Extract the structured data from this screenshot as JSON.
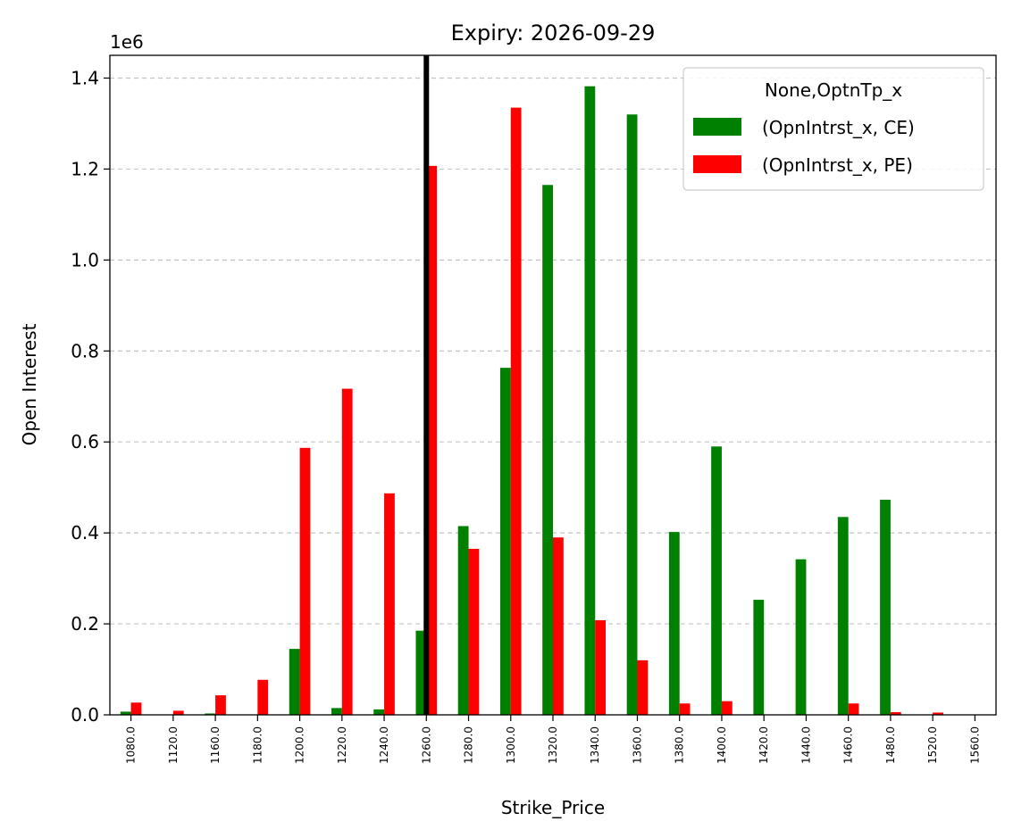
{
  "chart_data": {
    "type": "bar",
    "title": "Expiry: 2026-09-29",
    "xlabel": "Strike_Price",
    "ylabel": "Open Interest",
    "y_offset_label": "1e6",
    "ylim": [
      0,
      1.45
    ],
    "y_ticks": [
      "0.0",
      "0.2",
      "0.4",
      "0.6",
      "0.8",
      "1.0",
      "1.2",
      "1.4"
    ],
    "grid": "horizontal dashed",
    "legend": {
      "title": "None,OptnTp_x",
      "position": "top-right"
    },
    "categories": [
      "1080.0",
      "1120.0",
      "1160.0",
      "1180.0",
      "1200.0",
      "1220.0",
      "1240.0",
      "1260.0",
      "1280.0",
      "1300.0",
      "1320.0",
      "1340.0",
      "1360.0",
      "1380.0",
      "1400.0",
      "1420.0",
      "1440.0",
      "1460.0",
      "1480.0",
      "1520.0",
      "1560.0"
    ],
    "series": [
      {
        "name": "(OpnIntrst_x, CE)",
        "color": "#008000",
        "values": [
          0.007,
          0.0,
          0.003,
          0.0,
          0.145,
          0.015,
          0.012,
          0.185,
          0.415,
          0.763,
          1.165,
          1.382,
          1.32,
          0.402,
          0.59,
          0.253,
          0.342,
          0.435,
          0.473,
          0.0,
          0.0
        ]
      },
      {
        "name": "(OpnIntrst_x, PE)",
        "color": "#ff0000",
        "values": [
          0.027,
          0.009,
          0.043,
          0.077,
          0.587,
          0.717,
          0.487,
          1.207,
          0.365,
          1.335,
          0.39,
          0.208,
          0.12,
          0.025,
          0.03,
          0.0,
          0.0,
          0.025,
          0.006,
          0.005,
          0.0
        ]
      }
    ],
    "reference_line": {
      "category": "1260.0",
      "color": "#000000"
    }
  }
}
